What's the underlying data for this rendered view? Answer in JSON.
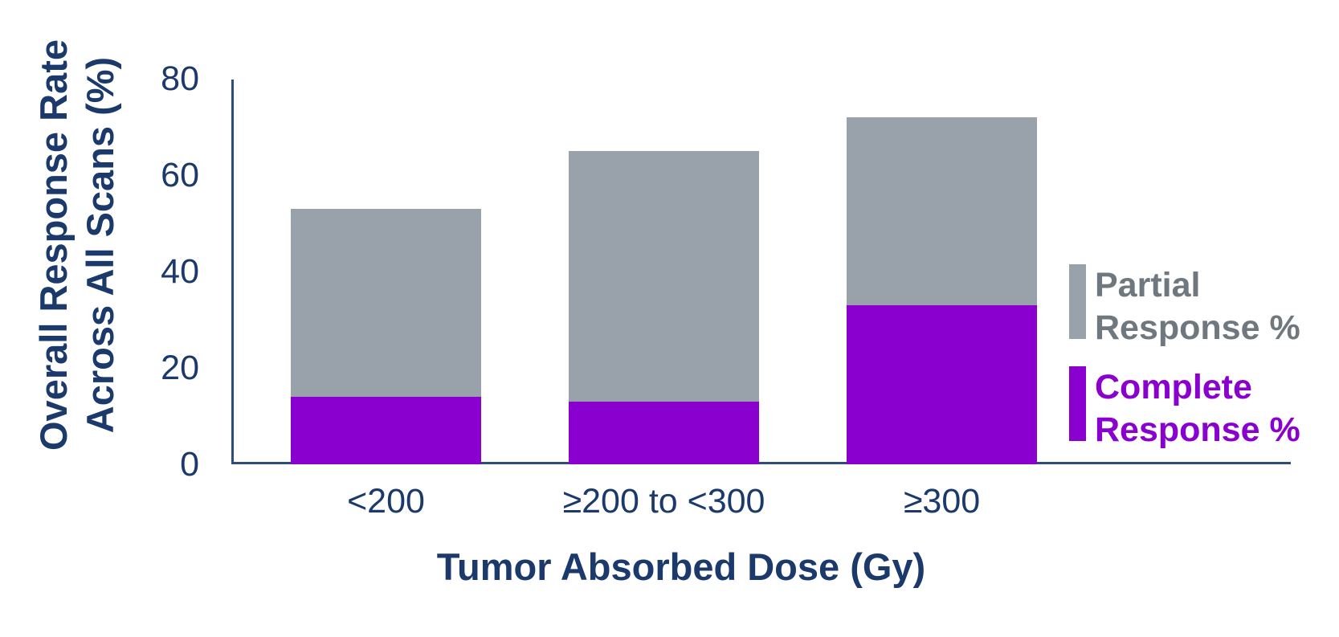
{
  "chart_data": {
    "type": "bar",
    "stacked": true,
    "categories": [
      "<200",
      "≥200 to <300",
      "≥300"
    ],
    "series": [
      {
        "name": "Complete Response %",
        "values": [
          14,
          13,
          33
        ]
      },
      {
        "name": "Partial Response %",
        "values": [
          39,
          52,
          39
        ]
      }
    ],
    "totals": [
      53,
      65,
      72
    ],
    "xlabel": "Tumor Absorbed Dose (Gy)",
    "ylabel_line1": "Overall Response Rate",
    "ylabel_line2": "Across All Scans (%)",
    "ylim": [
      0,
      80
    ],
    "yticks": [
      0,
      20,
      40,
      60,
      80
    ],
    "grid": false,
    "legend_position": "right",
    "legend": [
      {
        "line1": "Partial",
        "line2": "Response %"
      },
      {
        "line1": "Complete",
        "line2": "Response %"
      }
    ]
  },
  "colors": {
    "navy_text": "#1B3A6B",
    "axis_line": "#2E4E77",
    "partial_gray": "#99A1AA",
    "complete_purple": "#8A00CE",
    "legend_gray_text": "#6F777F",
    "background": "#FFFFFF"
  }
}
